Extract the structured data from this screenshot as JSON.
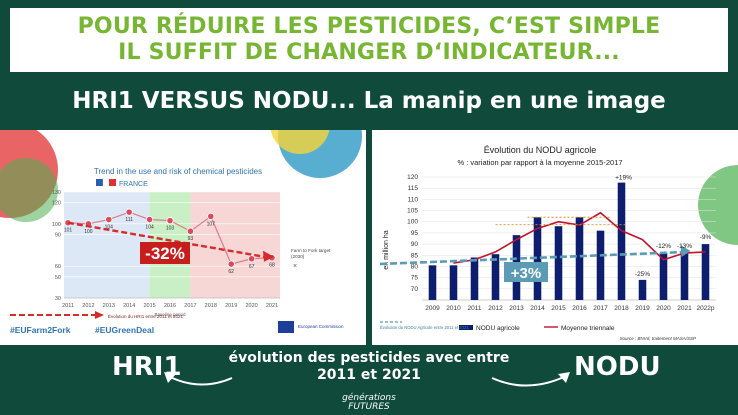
{
  "header": {
    "line1": "POUR RÉDUIRE LES PESTICIDES, C‘EST SIMPLE",
    "line2": "IL SUFFIT DE CHANGER D‘INDICATEUR..."
  },
  "subtitle": "HRI1 VERSUS NODU... La manip en une image",
  "footer": {
    "left_label": "HRI1",
    "right_label": "NODU",
    "caption_line1": "évolution des pesticides avec entre",
    "caption_line2": "2011 et 2021",
    "brand_line1": "générations",
    "brand_line2": "FUTURES"
  },
  "colors": {
    "background": "#0f4a3a",
    "headline": "#77b633",
    "hri_line": "#d62b2b",
    "nodu_bar": "#0e1e6e",
    "trend_line": "#c0122b",
    "arrow_blue": "#5b9bb5"
  },
  "chart_data": [
    {
      "type": "line",
      "title": "Trend in the use and risk of chemical pesticides",
      "subtitle": "FRANCE",
      "x": [
        2011,
        2012,
        2013,
        2014,
        2015,
        2016,
        2017,
        2018,
        2019,
        2020,
        2021
      ],
      "values": [
        101,
        100,
        104,
        111,
        104,
        103,
        93,
        107,
        62,
        67,
        68
      ],
      "y_ticks": [
        30,
        50,
        60,
        90,
        100,
        120,
        130
      ],
      "ylim": [
        30,
        130
      ],
      "baseline_period_label": "Baseline period",
      "baseline_period": [
        2015,
        2017
      ],
      "farm_to_fork_label": "Farm to Fork target (2030)",
      "reduction_label": "-32%",
      "legend": "Évolution du HRI1 entre 2011 et 2021",
      "hashtags": [
        "#EUFarm2Fork",
        "#EUGreenDeal"
      ],
      "logo_text": "European Commission"
    },
    {
      "type": "bar",
      "title": "Évolution du NODU agricole",
      "subtitle": "% : variation par rapport à la moyenne 2015-2017",
      "ylabel": "en million ha",
      "categories": [
        "2009",
        "2010",
        "2011",
        "2012",
        "2013",
        "2014",
        "2015",
        "2016",
        "2017",
        "2018",
        "2019",
        "2020",
        "2021",
        "2022p"
      ],
      "ylim": [
        65,
        120
      ],
      "y_ticks": [
        70,
        75,
        80,
        85,
        90,
        95,
        100,
        105,
        110,
        115,
        120
      ],
      "series": [
        {
          "name": "NODU agricole",
          "values": [
            80.5,
            80.5,
            84,
            85.5,
            94,
            102,
            98,
            102,
            96,
            117.5,
            74,
            86,
            86,
            90
          ]
        },
        {
          "name": "Moyenne triennale",
          "values": [
            null,
            81.5,
            83,
            86.5,
            92,
            97,
            100,
            98.5,
            104,
            96,
            92,
            83,
            86,
            86.5
          ]
        }
      ],
      "annotations": [
        "+19%",
        "-25%",
        "-12%",
        "-13%",
        "-9%",
        "+3%"
      ],
      "legend_note": "Évolution du NODU Agricole entre 2011 et 2021",
      "source": "Source : BNVd, traitement MASA/SSP"
    }
  ]
}
